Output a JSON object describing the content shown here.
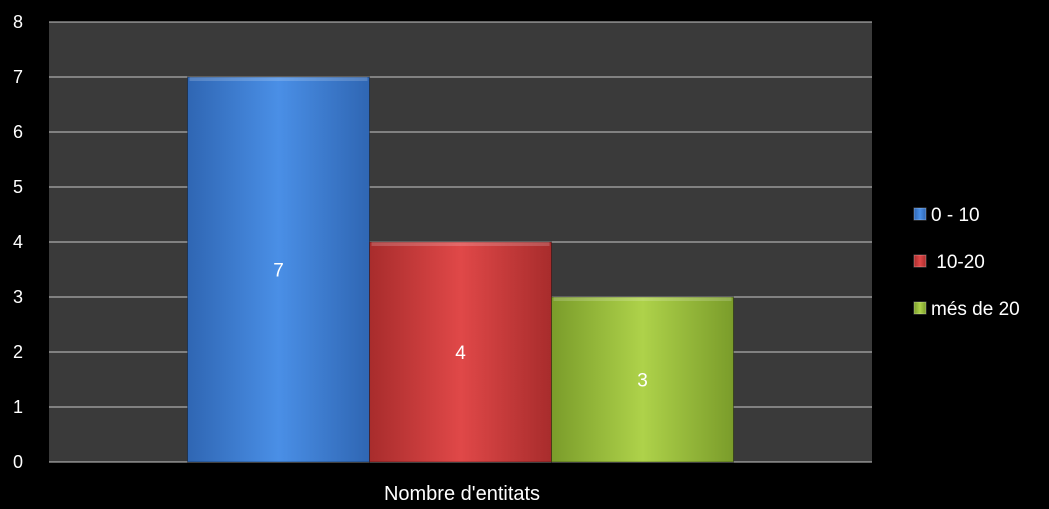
{
  "chart_data": {
    "type": "bar",
    "title": "",
    "xlabel": "Nombre d'entitats",
    "ylabel": "",
    "ylim": [
      0,
      8
    ],
    "yticks": [
      0,
      1,
      2,
      3,
      4,
      5,
      6,
      7,
      8
    ],
    "grid": true,
    "legend_position": "right",
    "categories": [
      "Nombre d'entitats"
    ],
    "series": [
      {
        "name": "0 - 10",
        "values": [
          7
        ],
        "color": "#3b7fd6",
        "label": "7"
      },
      {
        "name": " 10-20",
        "values": [
          4
        ],
        "color": "#cf3a3a",
        "label": "4"
      },
      {
        "name": "més de 20",
        "values": [
          3
        ],
        "color": "#9bc23c",
        "label": "3"
      }
    ],
    "plot_background": "#3a3a3a",
    "gridline_color": "#c8c8c8"
  }
}
